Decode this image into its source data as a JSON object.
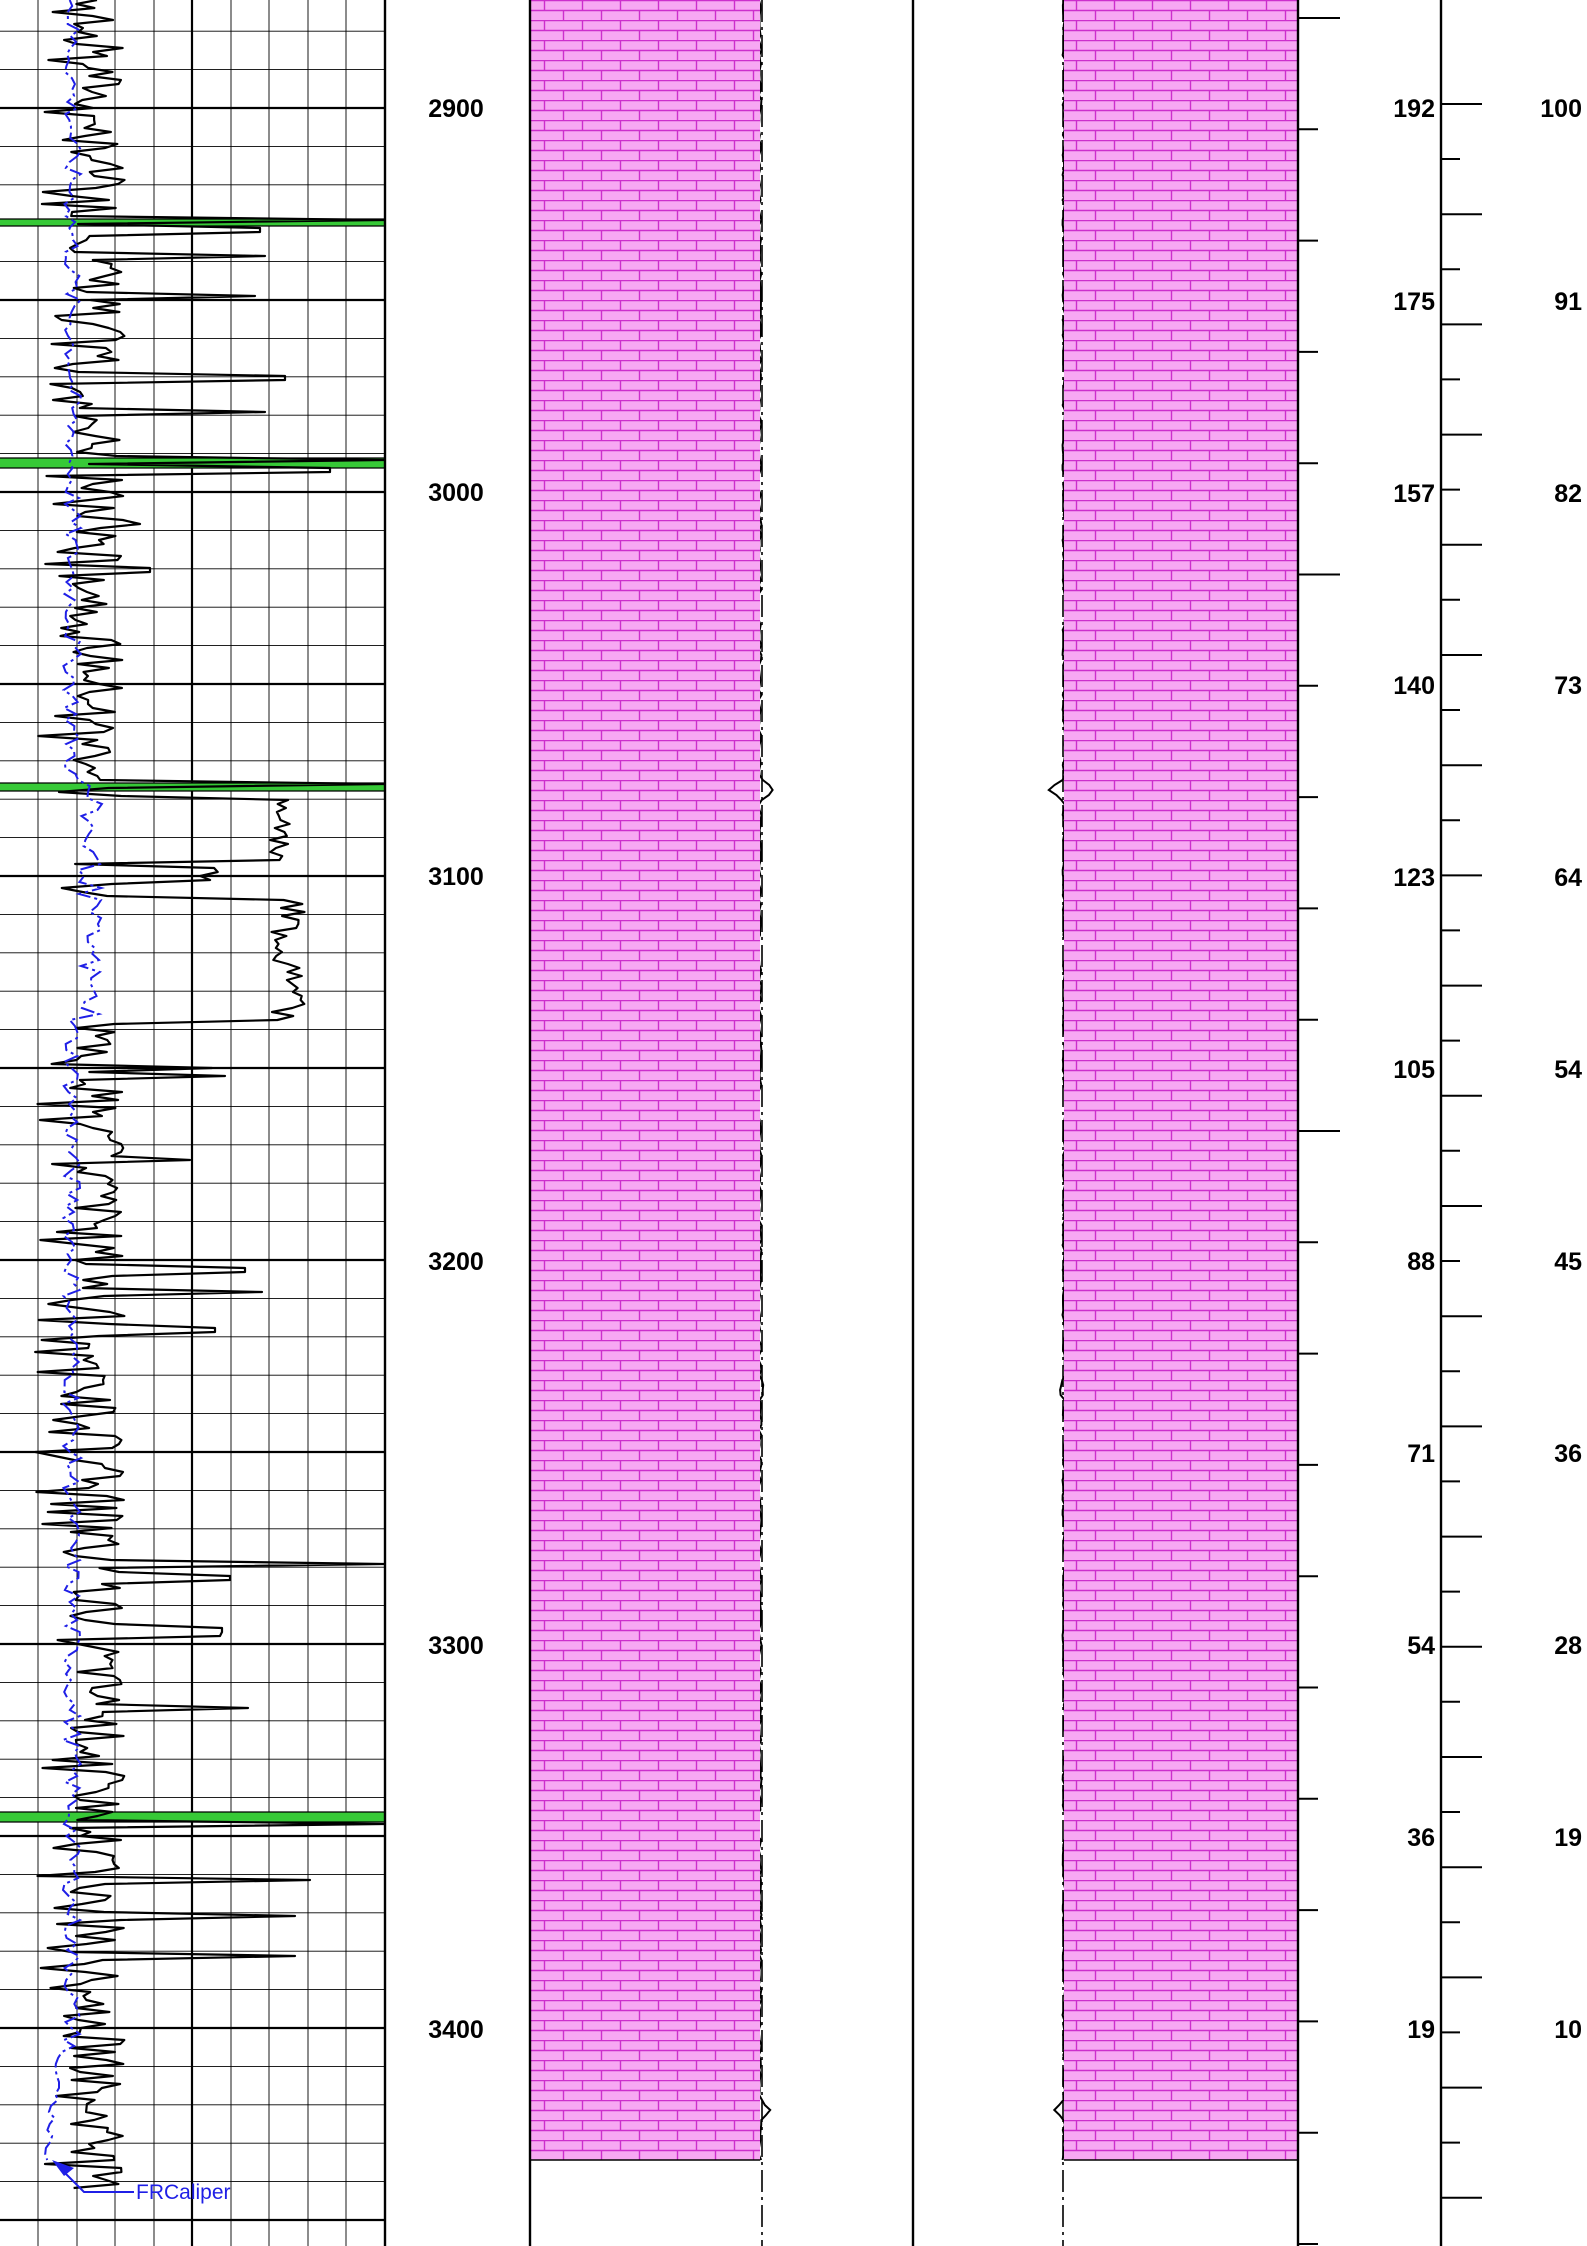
{
  "depth_track": {
    "labels": [
      "2900",
      "3000",
      "3100",
      "3200",
      "3300",
      "3400"
    ]
  },
  "right_scale_a": {
    "labels": [
      "192",
      "175",
      "157",
      "140",
      "123",
      "105",
      "88",
      "71",
      "54",
      "36",
      "19"
    ]
  },
  "right_scale_b": {
    "labels": [
      "100",
      "91",
      "82",
      "73",
      "64",
      "54",
      "45",
      "36",
      "28",
      "19",
      "10"
    ]
  },
  "caliper": {
    "label": "FRCaliper",
    "color": "#1f1fe6"
  },
  "colors": {
    "lithology_fill": "#f7a8f3",
    "lithology_line": "#cc2fcc",
    "marker_fill": "#37c937",
    "curve": "#000000"
  },
  "icons": {
    "callout": "arrow-head-icon"
  }
}
